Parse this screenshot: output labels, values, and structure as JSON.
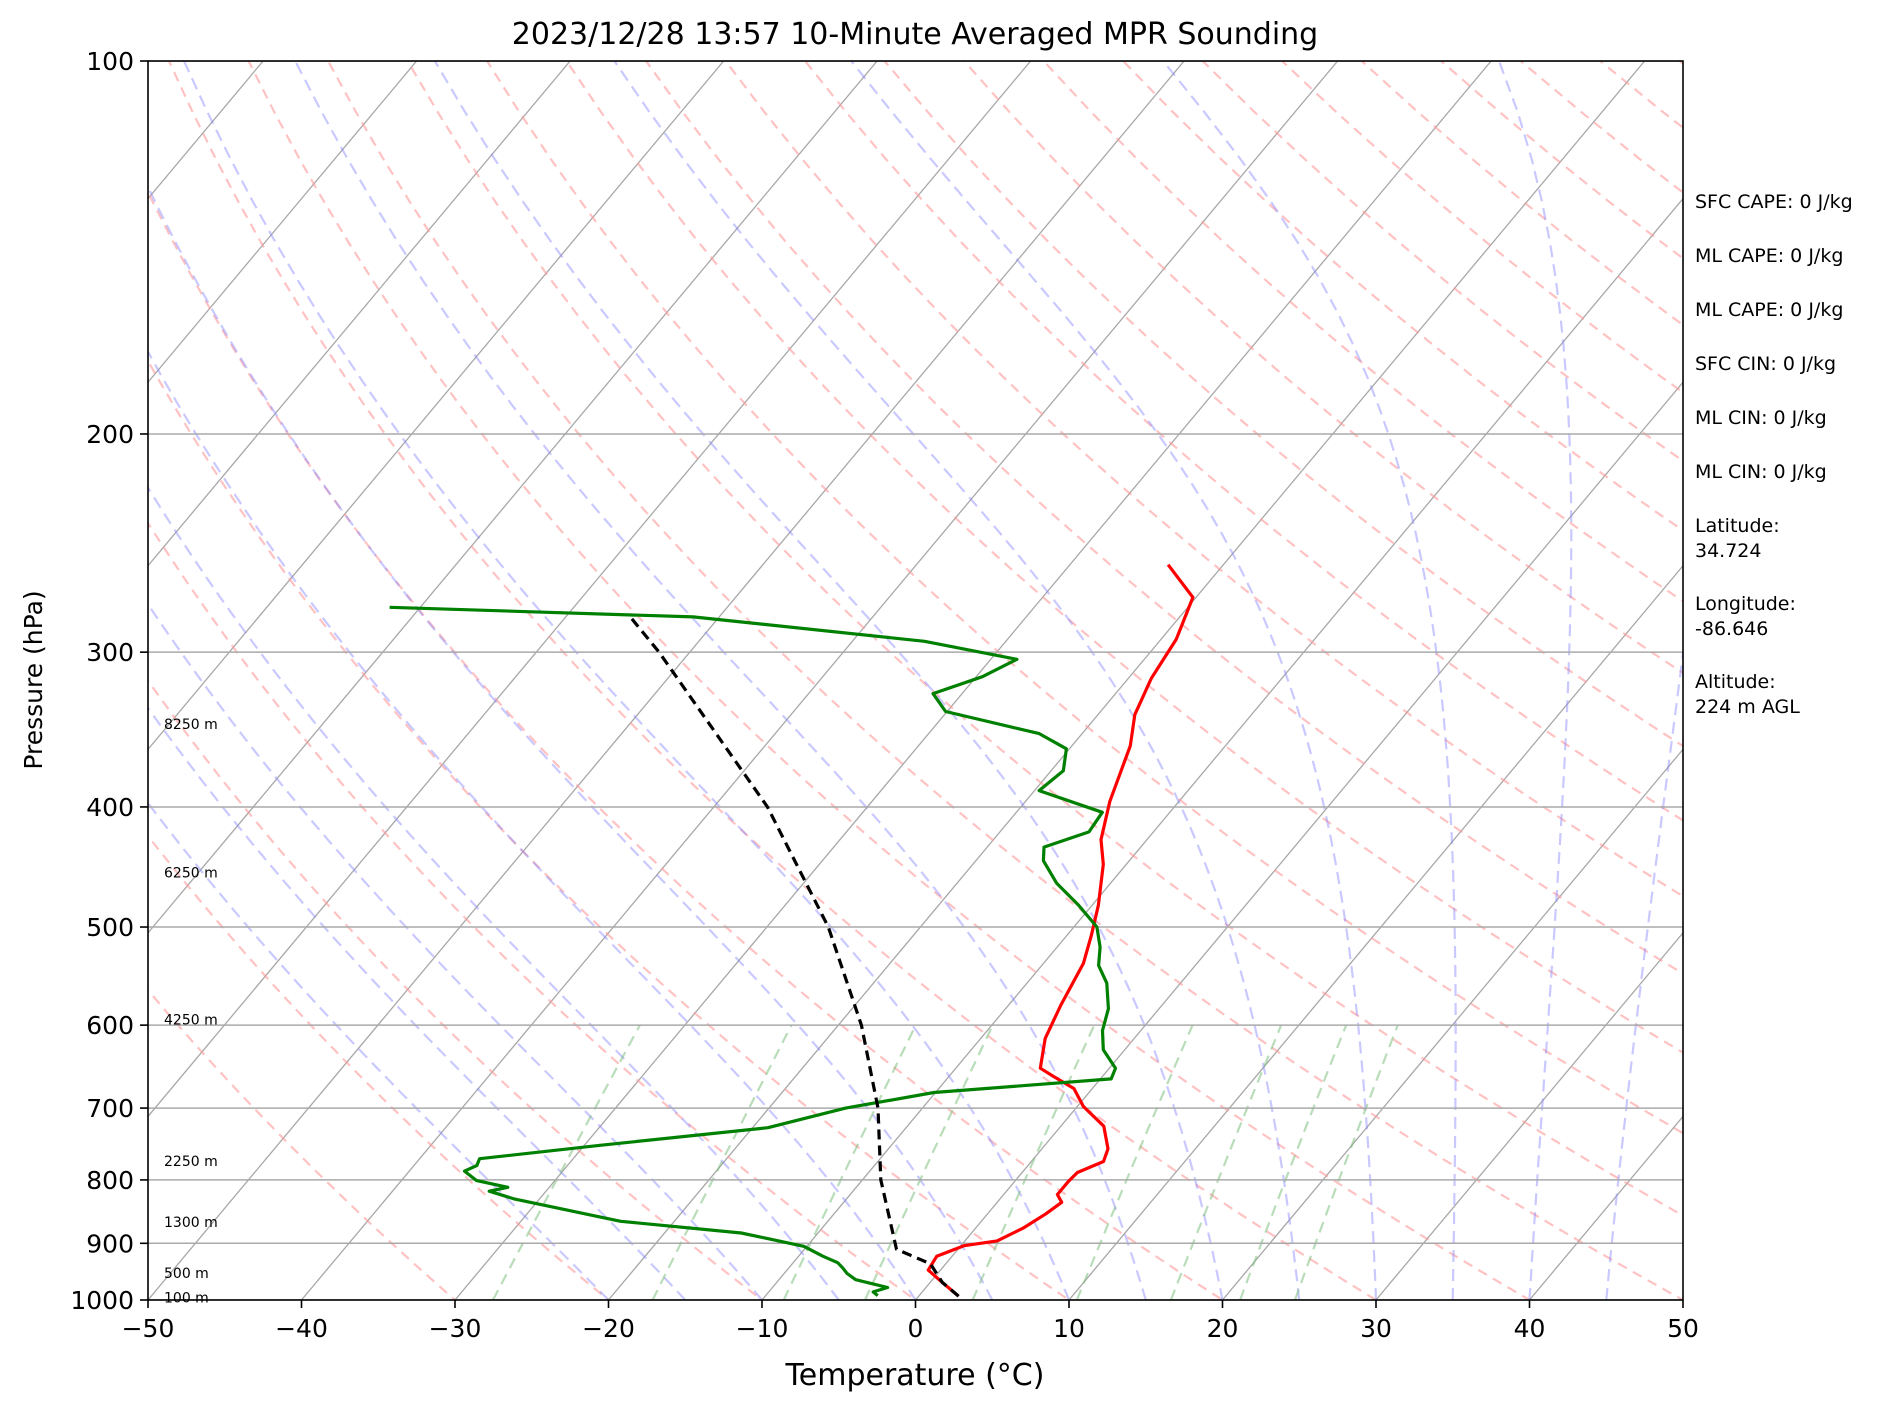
{
  "chart_data": {
    "type": "line",
    "subtype": "skew-T log-P sounding",
    "title": "2023/12/28 13:57 10-Minute Averaged MPR Sounding",
    "xlabel": "Temperature (°C)",
    "ylabel": "Pressure (hPa)",
    "xlim": [
      -50,
      50
    ],
    "ylim": [
      1000,
      100
    ],
    "y_scale": "log",
    "x_ticks": [
      -50,
      -40,
      -30,
      -20,
      -10,
      0,
      10,
      20,
      30,
      40,
      50
    ],
    "x_tick_labels": [
      "−50",
      "−40",
      "−30",
      "−20",
      "−10",
      "0",
      "10",
      "20",
      "30",
      "40",
      "50"
    ],
    "y_ticks": [
      1000,
      900,
      800,
      700,
      600,
      500,
      400,
      300,
      200,
      100
    ],
    "y_tick_labels": [
      "1000",
      "900",
      "800",
      "700",
      "600",
      "500",
      "400",
      "300",
      "200",
      "100"
    ],
    "grid": true,
    "height_labels": [
      {
        "text": "100 m",
        "pressure": 995
      },
      {
        "text": "500 m",
        "pressure": 951
      },
      {
        "text": "1300 m",
        "pressure": 865
      },
      {
        "text": "2250 m",
        "pressure": 772
      },
      {
        "text": "4250 m",
        "pressure": 594
      },
      {
        "text": "6250 m",
        "pressure": 452
      },
      {
        "text": "8250 m",
        "pressure": 343
      }
    ],
    "series": [
      {
        "color": "#ff0000",
        "style": "solid",
        "points": [
          [
            2.6,
            993
          ],
          [
            0.8,
            968
          ],
          [
            -0.8,
            946
          ],
          [
            -1.0,
            922
          ],
          [
            0.2,
            904
          ],
          [
            2.1,
            896
          ],
          [
            3.1,
            875
          ],
          [
            3.8,
            852
          ],
          [
            4.2,
            834
          ],
          [
            3.5,
            822
          ],
          [
            3.5,
            802
          ],
          [
            3.6,
            789
          ],
          [
            4.7,
            773
          ],
          [
            4.3,
            755
          ],
          [
            2.8,
            724
          ],
          [
            0.4,
            698
          ],
          [
            -1.2,
            675
          ],
          [
            -3.2,
            660
          ],
          [
            -4.5,
            650
          ],
          [
            -5.8,
            615
          ],
          [
            -6.6,
            578
          ],
          [
            -7.4,
            535
          ],
          [
            -8.4,
            508
          ],
          [
            -9.6,
            480
          ],
          [
            -11.5,
            445
          ],
          [
            -13.0,
            425
          ],
          [
            -14.5,
            396
          ],
          [
            -16.2,
            357
          ],
          [
            -17.6,
            337
          ],
          [
            -18.5,
            315
          ],
          [
            -19.0,
            293
          ],
          [
            -20.2,
            271
          ],
          [
            -23.6,
            255
          ]
        ]
      },
      {
        "color": "#008000",
        "style": "solid",
        "points": [
          [
            -2.7,
            992
          ],
          [
            -3.2,
            985
          ],
          [
            -2.5,
            977
          ],
          [
            -5.0,
            963
          ],
          [
            -5.9,
            952
          ],
          [
            -6.5,
            942
          ],
          [
            -7.1,
            933
          ],
          [
            -8.4,
            922
          ],
          [
            -10.2,
            905
          ],
          [
            -15.0,
            883
          ],
          [
            -23.5,
            864
          ],
          [
            -31.6,
            829
          ],
          [
            -33.7,
            817
          ],
          [
            -32.7,
            811
          ],
          [
            -35.1,
            801
          ],
          [
            -36.4,
            787
          ],
          [
            -35.9,
            779
          ],
          [
            -36.1,
            769
          ],
          [
            -28.9,
            750
          ],
          [
            -19.0,
            726
          ],
          [
            -15.0,
            700
          ],
          [
            -10.1,
            680
          ],
          [
            0.7,
            663
          ],
          [
            0.4,
            650
          ],
          [
            -1.4,
            628
          ],
          [
            -2.5,
            606
          ],
          [
            -3.3,
            582
          ],
          [
            -4.8,
            555
          ],
          [
            -6.3,
            537
          ],
          [
            -7.2,
            519
          ],
          [
            -8.5,
            500
          ],
          [
            -10.9,
            480
          ],
          [
            -13.5,
            461
          ],
          [
            -15.6,
            442
          ],
          [
            -16.3,
            431
          ],
          [
            -14.2,
            419
          ],
          [
            -14.4,
            404
          ],
          [
            -19.7,
            388
          ],
          [
            -19.2,
            374
          ],
          [
            -20.2,
            359
          ],
          [
            -22.8,
            349
          ],
          [
            -30.1,
            335
          ],
          [
            -31.9,
            324
          ],
          [
            -29.6,
            314
          ],
          [
            -28.3,
            304
          ],
          [
            -35.3,
            294
          ],
          [
            -51.7,
            281
          ],
          [
            -72.0,
            276
          ]
        ]
      },
      {
        "color": "#000000",
        "style": "dashed",
        "points": [
          [
            2.6,
            993
          ],
          [
            0.8,
            968
          ],
          [
            -1.0,
            935
          ],
          [
            -4.0,
            910
          ],
          [
            -8.8,
            800
          ],
          [
            -12.9,
            700
          ],
          [
            -18.5,
            600
          ],
          [
            -26.0,
            500
          ],
          [
            -36.5,
            400
          ],
          [
            -52.0,
            300
          ],
          [
            -56.0,
            280
          ]
        ]
      }
    ]
  },
  "side_stats": {
    "sfc_cape": "SFC CAPE: 0 J/kg",
    "ml_cape": "ML CAPE: 0 J/kg",
    "ml_cape_2": "ML CAPE: 0 J/kg",
    "sfc_cin": "SFC CIN: 0 J/kg",
    "ml_cin": "ML CIN: 0 J/kg",
    "ml_cin_2": "ML CIN: 0 J/kg",
    "latitude_label": "Latitude:",
    "latitude_value": "34.724",
    "longitude_label": "Longitude:",
    "longitude_value": "-86.646",
    "altitude_label": "Altitude:",
    "altitude_value": "224 m AGL"
  }
}
